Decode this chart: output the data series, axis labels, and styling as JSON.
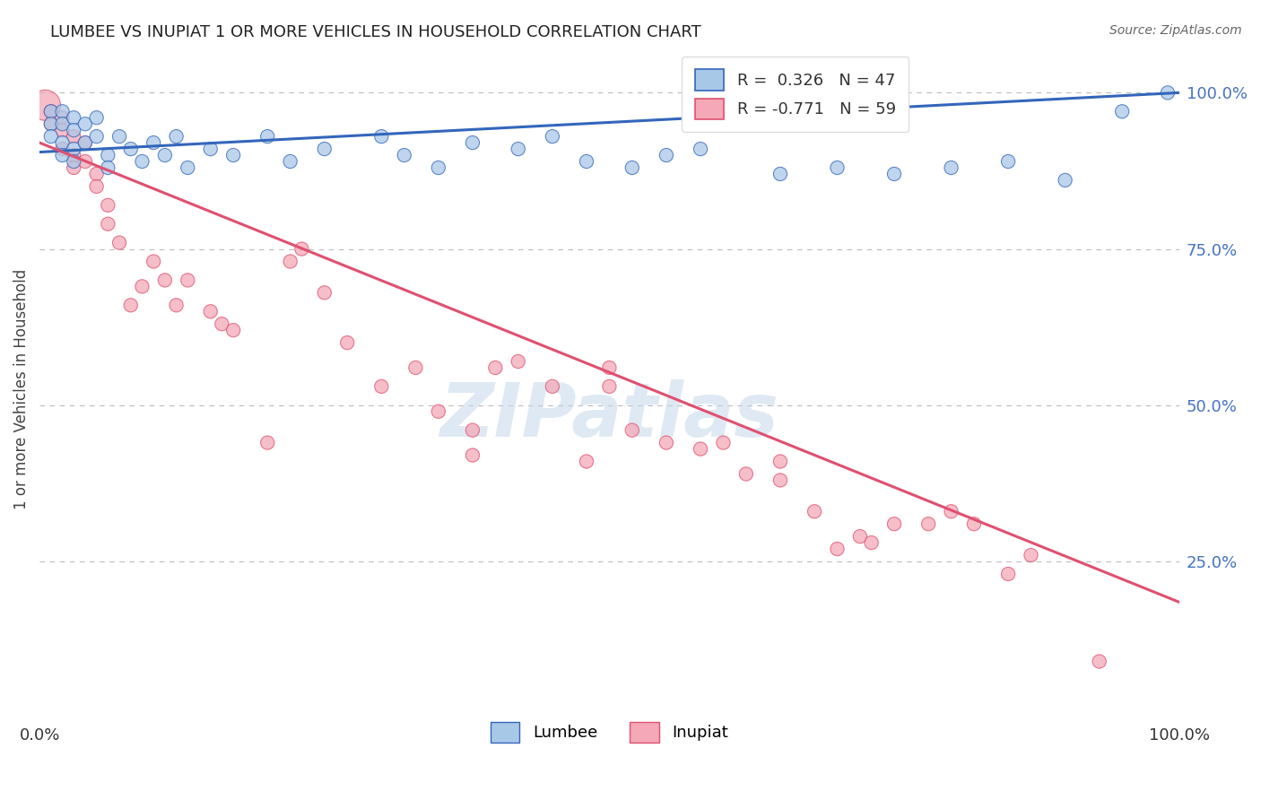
{
  "title": "LUMBEE VS INUPIAT 1 OR MORE VEHICLES IN HOUSEHOLD CORRELATION CHART",
  "source": "Source: ZipAtlas.com",
  "ylabel": "1 or more Vehicles in Household",
  "legend_lumbee": "Lumbee",
  "legend_inupiat": "Inupiat",
  "R_lumbee": "0.326",
  "N_lumbee": "47",
  "R_inupiat": "-0.771",
  "N_inupiat": "59",
  "lumbee_color": "#a8c8e8",
  "inupiat_color": "#f4a8b8",
  "lumbee_line_color": "#3366bb",
  "inupiat_line_color": "#e05070",
  "watermark": "ZIPatlas",
  "background_color": "#ffffff",
  "grid_color": "#bbbbbb",
  "lumbee_scatter": [
    [
      0.01,
      0.97
    ],
    [
      0.01,
      0.95
    ],
    [
      0.01,
      0.93
    ],
    [
      0.02,
      0.97
    ],
    [
      0.02,
      0.95
    ],
    [
      0.02,
      0.92
    ],
    [
      0.02,
      0.9
    ],
    [
      0.03,
      0.96
    ],
    [
      0.03,
      0.94
    ],
    [
      0.03,
      0.91
    ],
    [
      0.03,
      0.89
    ],
    [
      0.04,
      0.95
    ],
    [
      0.04,
      0.92
    ],
    [
      0.05,
      0.96
    ],
    [
      0.05,
      0.93
    ],
    [
      0.06,
      0.9
    ],
    [
      0.06,
      0.88
    ],
    [
      0.07,
      0.93
    ],
    [
      0.08,
      0.91
    ],
    [
      0.09,
      0.89
    ],
    [
      0.1,
      0.92
    ],
    [
      0.11,
      0.9
    ],
    [
      0.12,
      0.93
    ],
    [
      0.13,
      0.88
    ],
    [
      0.15,
      0.91
    ],
    [
      0.17,
      0.9
    ],
    [
      0.2,
      0.93
    ],
    [
      0.22,
      0.89
    ],
    [
      0.25,
      0.91
    ],
    [
      0.3,
      0.93
    ],
    [
      0.32,
      0.9
    ],
    [
      0.35,
      0.88
    ],
    [
      0.38,
      0.92
    ],
    [
      0.42,
      0.91
    ],
    [
      0.45,
      0.93
    ],
    [
      0.48,
      0.89
    ],
    [
      0.52,
      0.88
    ],
    [
      0.55,
      0.9
    ],
    [
      0.58,
      0.91
    ],
    [
      0.65,
      0.87
    ],
    [
      0.7,
      0.88
    ],
    [
      0.75,
      0.87
    ],
    [
      0.8,
      0.88
    ],
    [
      0.85,
      0.89
    ],
    [
      0.9,
      0.86
    ],
    [
      0.95,
      0.97
    ],
    [
      0.99,
      1.0
    ]
  ],
  "inupiat_scatter": [
    [
      0.005,
      0.98
    ],
    [
      0.01,
      0.97
    ],
    [
      0.01,
      0.95
    ],
    [
      0.02,
      0.96
    ],
    [
      0.02,
      0.94
    ],
    [
      0.02,
      0.91
    ],
    [
      0.03,
      0.93
    ],
    [
      0.03,
      0.9
    ],
    [
      0.03,
      0.88
    ],
    [
      0.04,
      0.92
    ],
    [
      0.04,
      0.89
    ],
    [
      0.05,
      0.87
    ],
    [
      0.05,
      0.85
    ],
    [
      0.06,
      0.82
    ],
    [
      0.06,
      0.79
    ],
    [
      0.07,
      0.76
    ],
    [
      0.08,
      0.66
    ],
    [
      0.09,
      0.69
    ],
    [
      0.1,
      0.73
    ],
    [
      0.11,
      0.7
    ],
    [
      0.12,
      0.66
    ],
    [
      0.13,
      0.7
    ],
    [
      0.15,
      0.65
    ],
    [
      0.16,
      0.63
    ],
    [
      0.17,
      0.62
    ],
    [
      0.2,
      0.44
    ],
    [
      0.22,
      0.73
    ],
    [
      0.23,
      0.75
    ],
    [
      0.25,
      0.68
    ],
    [
      0.27,
      0.6
    ],
    [
      0.3,
      0.53
    ],
    [
      0.33,
      0.56
    ],
    [
      0.35,
      0.49
    ],
    [
      0.38,
      0.42
    ],
    [
      0.38,
      0.46
    ],
    [
      0.4,
      0.56
    ],
    [
      0.42,
      0.57
    ],
    [
      0.45,
      0.53
    ],
    [
      0.48,
      0.41
    ],
    [
      0.5,
      0.53
    ],
    [
      0.5,
      0.56
    ],
    [
      0.52,
      0.46
    ],
    [
      0.55,
      0.44
    ],
    [
      0.58,
      0.43
    ],
    [
      0.6,
      0.44
    ],
    [
      0.62,
      0.39
    ],
    [
      0.65,
      0.41
    ],
    [
      0.65,
      0.38
    ],
    [
      0.68,
      0.33
    ],
    [
      0.7,
      0.27
    ],
    [
      0.72,
      0.29
    ],
    [
      0.73,
      0.28
    ],
    [
      0.75,
      0.31
    ],
    [
      0.78,
      0.31
    ],
    [
      0.8,
      0.33
    ],
    [
      0.82,
      0.31
    ],
    [
      0.85,
      0.23
    ],
    [
      0.87,
      0.26
    ],
    [
      0.93,
      0.09
    ]
  ],
  "lumbee_dot_size": 120,
  "lumbee_large_size": 400,
  "inupiat_dot_size": 120,
  "inupiat_large_size": 600,
  "xlim": [
    0.0,
    1.0
  ],
  "ylim": [
    0.0,
    1.05
  ],
  "ytick_positions": [
    0.25,
    0.5,
    0.75,
    1.0
  ],
  "ytick_labels": [
    "25.0%",
    "50.0%",
    "75.0%",
    "100.0%"
  ],
  "xtick_positions": [
    0.0,
    1.0
  ],
  "xtick_labels": [
    "0.0%",
    "100.0%"
  ]
}
